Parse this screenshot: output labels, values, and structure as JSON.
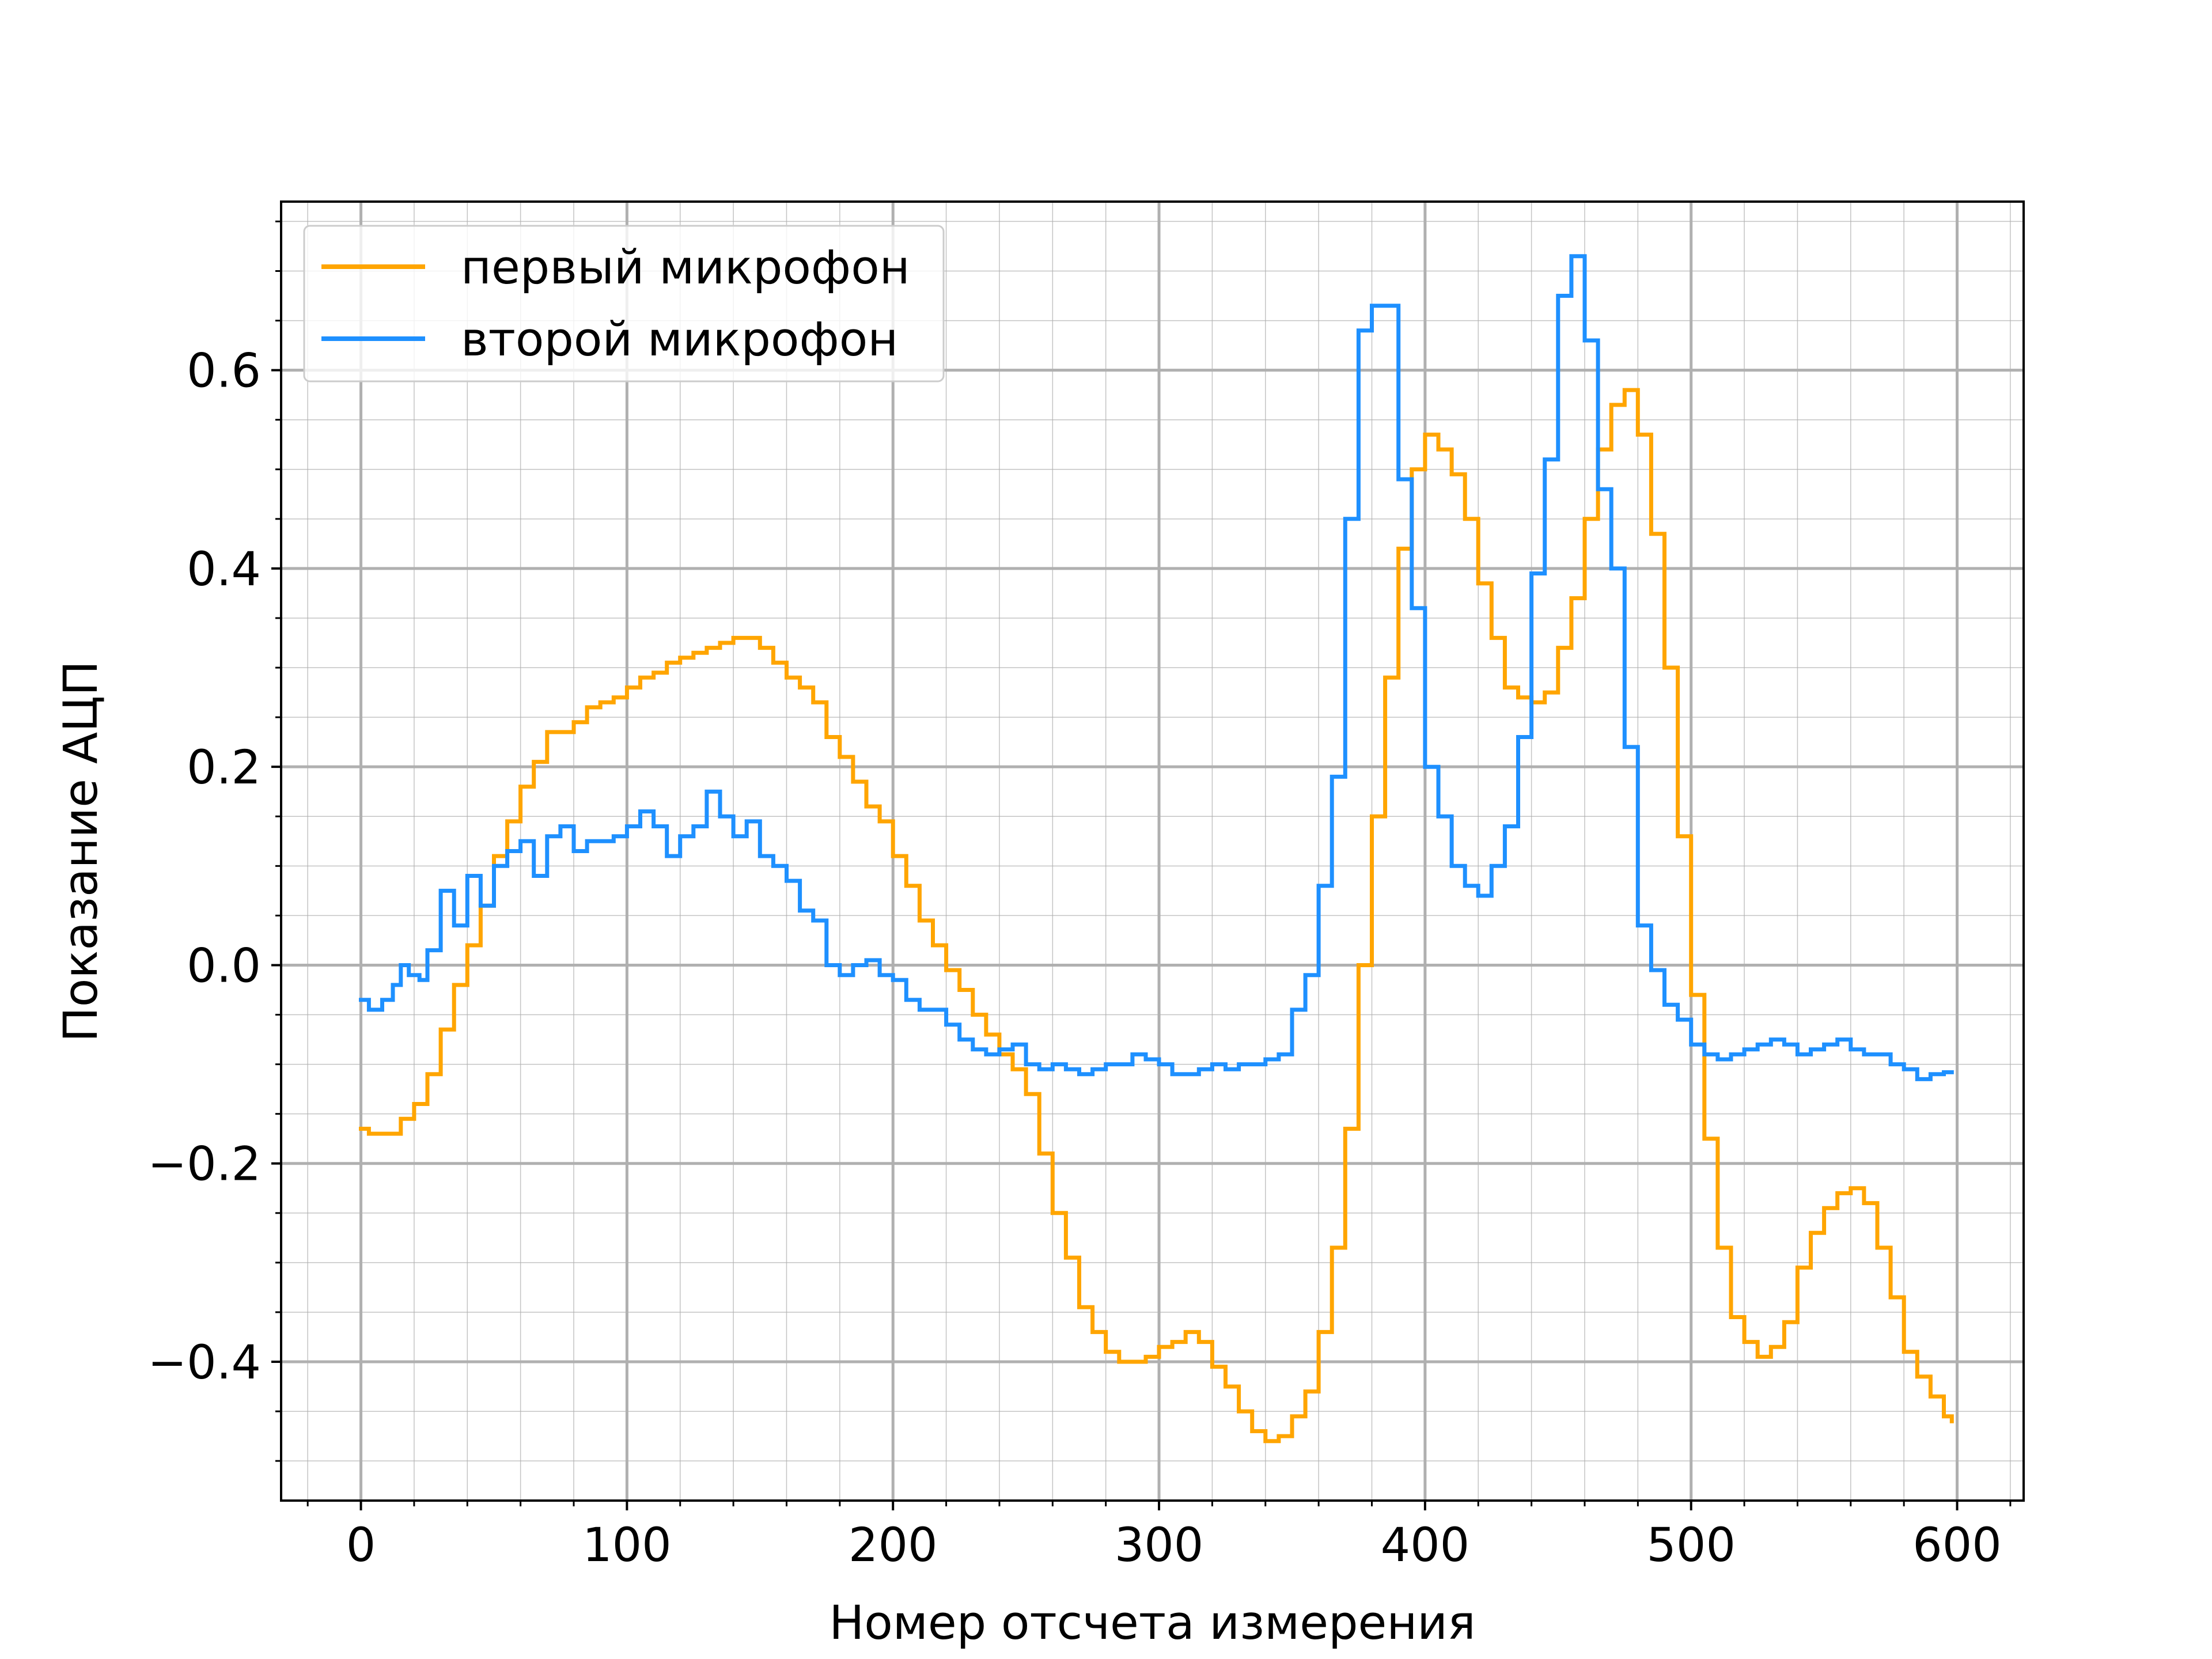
{
  "chart_data": {
    "type": "line",
    "title": "",
    "xlabel": "Номер отсчета измерения",
    "ylabel": "Показание АЦП",
    "xlim": [
      -30,
      625
    ],
    "ylim": [
      -0.54,
      0.77
    ],
    "xticks": [
      0,
      100,
      200,
      300,
      400,
      500,
      600
    ],
    "yticks": [
      -0.4,
      -0.2,
      0.0,
      0.2,
      0.4,
      0.6
    ],
    "x_tick_labels": [
      "0",
      "100",
      "200",
      "300",
      "400",
      "500",
      "600"
    ],
    "y_tick_labels": [
      "−0.4",
      "−0.2",
      "0.0",
      "0.2",
      "0.4",
      "0.6"
    ],
    "grid": true,
    "minor_grid": true,
    "legend_position": "top-left",
    "series": [
      {
        "name": "первый микрофон",
        "color": "#ffa500",
        "points": [
          [
            0,
            -0.165
          ],
          [
            3,
            -0.17
          ],
          [
            10,
            -0.17
          ],
          [
            15,
            -0.155
          ],
          [
            20,
            -0.14
          ],
          [
            25,
            -0.11
          ],
          [
            30,
            -0.065
          ],
          [
            35,
            -0.02
          ],
          [
            40,
            0.02
          ],
          [
            45,
            0.06
          ],
          [
            50,
            0.11
          ],
          [
            55,
            0.145
          ],
          [
            60,
            0.18
          ],
          [
            65,
            0.205
          ],
          [
            70,
            0.235
          ],
          [
            75,
            0.235
          ],
          [
            80,
            0.245
          ],
          [
            85,
            0.26
          ],
          [
            90,
            0.265
          ],
          [
            95,
            0.27
          ],
          [
            100,
            0.28
          ],
          [
            105,
            0.29
          ],
          [
            110,
            0.295
          ],
          [
            115,
            0.305
          ],
          [
            120,
            0.31
          ],
          [
            125,
            0.315
          ],
          [
            130,
            0.32
          ],
          [
            135,
            0.325
          ],
          [
            140,
            0.33
          ],
          [
            145,
            0.33
          ],
          [
            150,
            0.32
          ],
          [
            155,
            0.305
          ],
          [
            160,
            0.29
          ],
          [
            165,
            0.28
          ],
          [
            170,
            0.265
          ],
          [
            175,
            0.23
          ],
          [
            180,
            0.21
          ],
          [
            185,
            0.185
          ],
          [
            190,
            0.16
          ],
          [
            195,
            0.145
          ],
          [
            200,
            0.11
          ],
          [
            205,
            0.08
          ],
          [
            210,
            0.045
          ],
          [
            215,
            0.02
          ],
          [
            220,
            -0.005
          ],
          [
            225,
            -0.025
          ],
          [
            230,
            -0.05
          ],
          [
            235,
            -0.07
          ],
          [
            240,
            -0.09
          ],
          [
            245,
            -0.105
          ],
          [
            250,
            -0.13
          ],
          [
            255,
            -0.19
          ],
          [
            260,
            -0.25
          ],
          [
            265,
            -0.295
          ],
          [
            270,
            -0.345
          ],
          [
            275,
            -0.37
          ],
          [
            280,
            -0.39
          ],
          [
            285,
            -0.4
          ],
          [
            290,
            -0.4
          ],
          [
            295,
            -0.395
          ],
          [
            300,
            -0.385
          ],
          [
            305,
            -0.38
          ],
          [
            310,
            -0.37
          ],
          [
            315,
            -0.38
          ],
          [
            320,
            -0.405
          ],
          [
            325,
            -0.425
          ],
          [
            330,
            -0.45
          ],
          [
            335,
            -0.47
          ],
          [
            340,
            -0.48
          ],
          [
            345,
            -0.475
          ],
          [
            350,
            -0.455
          ],
          [
            355,
            -0.43
          ],
          [
            360,
            -0.37
          ],
          [
            365,
            -0.285
          ],
          [
            370,
            -0.165
          ],
          [
            375,
            0.0
          ],
          [
            380,
            0.15
          ],
          [
            385,
            0.29
          ],
          [
            390,
            0.42
          ],
          [
            395,
            0.5
          ],
          [
            400,
            0.535
          ],
          [
            405,
            0.52
          ],
          [
            410,
            0.495
          ],
          [
            415,
            0.45
          ],
          [
            420,
            0.385
          ],
          [
            425,
            0.33
          ],
          [
            430,
            0.28
          ],
          [
            435,
            0.27
          ],
          [
            440,
            0.265
          ],
          [
            445,
            0.275
          ],
          [
            450,
            0.32
          ],
          [
            455,
            0.37
          ],
          [
            460,
            0.45
          ],
          [
            465,
            0.52
          ],
          [
            470,
            0.565
          ],
          [
            475,
            0.58
          ],
          [
            480,
            0.535
          ],
          [
            485,
            0.435
          ],
          [
            490,
            0.3
          ],
          [
            495,
            0.13
          ],
          [
            500,
            -0.03
          ],
          [
            505,
            -0.175
          ],
          [
            510,
            -0.285
          ],
          [
            515,
            -0.355
          ],
          [
            520,
            -0.38
          ],
          [
            525,
            -0.395
          ],
          [
            530,
            -0.385
          ],
          [
            535,
            -0.36
          ],
          [
            540,
            -0.305
          ],
          [
            545,
            -0.27
          ],
          [
            550,
            -0.245
          ],
          [
            555,
            -0.23
          ],
          [
            560,
            -0.225
          ],
          [
            565,
            -0.24
          ],
          [
            570,
            -0.285
          ],
          [
            575,
            -0.335
          ],
          [
            580,
            -0.39
          ],
          [
            585,
            -0.415
          ],
          [
            590,
            -0.435
          ],
          [
            595,
            -0.455
          ],
          [
            598,
            -0.46
          ]
        ]
      },
      {
        "name": "второй микрофон",
        "color": "#1e90ff",
        "points": [
          [
            0,
            -0.035
          ],
          [
            3,
            -0.045
          ],
          [
            8,
            -0.035
          ],
          [
            12,
            -0.02
          ],
          [
            15,
            0.0
          ],
          [
            18,
            -0.01
          ],
          [
            22,
            -0.015
          ],
          [
            25,
            0.015
          ],
          [
            30,
            0.075
          ],
          [
            35,
            0.04
          ],
          [
            40,
            0.09
          ],
          [
            45,
            0.06
          ],
          [
            50,
            0.1
          ],
          [
            55,
            0.115
          ],
          [
            60,
            0.125
          ],
          [
            65,
            0.09
          ],
          [
            70,
            0.13
          ],
          [
            75,
            0.14
          ],
          [
            80,
            0.115
          ],
          [
            85,
            0.125
          ],
          [
            90,
            0.125
          ],
          [
            95,
            0.13
          ],
          [
            100,
            0.14
          ],
          [
            105,
            0.155
          ],
          [
            110,
            0.14
          ],
          [
            115,
            0.11
          ],
          [
            120,
            0.13
          ],
          [
            125,
            0.14
          ],
          [
            130,
            0.175
          ],
          [
            135,
            0.15
          ],
          [
            140,
            0.13
          ],
          [
            145,
            0.145
          ],
          [
            150,
            0.11
          ],
          [
            155,
            0.1
          ],
          [
            160,
            0.085
          ],
          [
            165,
            0.055
          ],
          [
            170,
            0.045
          ],
          [
            175,
            0.0
          ],
          [
            180,
            -0.01
          ],
          [
            185,
            0.0
          ],
          [
            190,
            0.005
          ],
          [
            195,
            -0.01
          ],
          [
            200,
            -0.015
          ],
          [
            205,
            -0.035
          ],
          [
            210,
            -0.045
          ],
          [
            215,
            -0.045
          ],
          [
            220,
            -0.06
          ],
          [
            225,
            -0.075
          ],
          [
            230,
            -0.085
          ],
          [
            235,
            -0.09
          ],
          [
            240,
            -0.085
          ],
          [
            245,
            -0.08
          ],
          [
            250,
            -0.1
          ],
          [
            255,
            -0.105
          ],
          [
            260,
            -0.1
          ],
          [
            265,
            -0.105
          ],
          [
            270,
            -0.11
          ],
          [
            275,
            -0.105
          ],
          [
            280,
            -0.1
          ],
          [
            285,
            -0.1
          ],
          [
            290,
            -0.09
          ],
          [
            295,
            -0.095
          ],
          [
            300,
            -0.1
          ],
          [
            305,
            -0.11
          ],
          [
            310,
            -0.11
          ],
          [
            315,
            -0.105
          ],
          [
            320,
            -0.1
          ],
          [
            325,
            -0.105
          ],
          [
            330,
            -0.1
          ],
          [
            335,
            -0.1
          ],
          [
            340,
            -0.095
          ],
          [
            345,
            -0.09
          ],
          [
            350,
            -0.045
          ],
          [
            355,
            -0.01
          ],
          [
            360,
            0.08
          ],
          [
            365,
            0.19
          ],
          [
            370,
            0.45
          ],
          [
            375,
            0.64
          ],
          [
            380,
            0.665
          ],
          [
            385,
            0.665
          ],
          [
            390,
            0.49
          ],
          [
            395,
            0.36
          ],
          [
            400,
            0.2
          ],
          [
            405,
            0.15
          ],
          [
            410,
            0.1
          ],
          [
            415,
            0.08
          ],
          [
            420,
            0.07
          ],
          [
            425,
            0.1
          ],
          [
            430,
            0.14
          ],
          [
            435,
            0.23
          ],
          [
            440,
            0.395
          ],
          [
            445,
            0.51
          ],
          [
            450,
            0.675
          ],
          [
            455,
            0.715
          ],
          [
            460,
            0.63
          ],
          [
            465,
            0.48
          ],
          [
            470,
            0.4
          ],
          [
            475,
            0.22
          ],
          [
            480,
            0.04
          ],
          [
            485,
            -0.005
          ],
          [
            490,
            -0.04
          ],
          [
            495,
            -0.055
          ],
          [
            500,
            -0.08
          ],
          [
            505,
            -0.09
          ],
          [
            510,
            -0.095
          ],
          [
            515,
            -0.09
          ],
          [
            520,
            -0.085
          ],
          [
            525,
            -0.08
          ],
          [
            530,
            -0.075
          ],
          [
            535,
            -0.08
          ],
          [
            540,
            -0.09
          ],
          [
            545,
            -0.085
          ],
          [
            550,
            -0.08
          ],
          [
            555,
            -0.075
          ],
          [
            560,
            -0.085
          ],
          [
            565,
            -0.09
          ],
          [
            570,
            -0.09
          ],
          [
            575,
            -0.1
          ],
          [
            580,
            -0.105
          ],
          [
            585,
            -0.115
          ],
          [
            590,
            -0.11
          ],
          [
            595,
            -0.108
          ],
          [
            598,
            -0.108
          ]
        ]
      }
    ]
  }
}
